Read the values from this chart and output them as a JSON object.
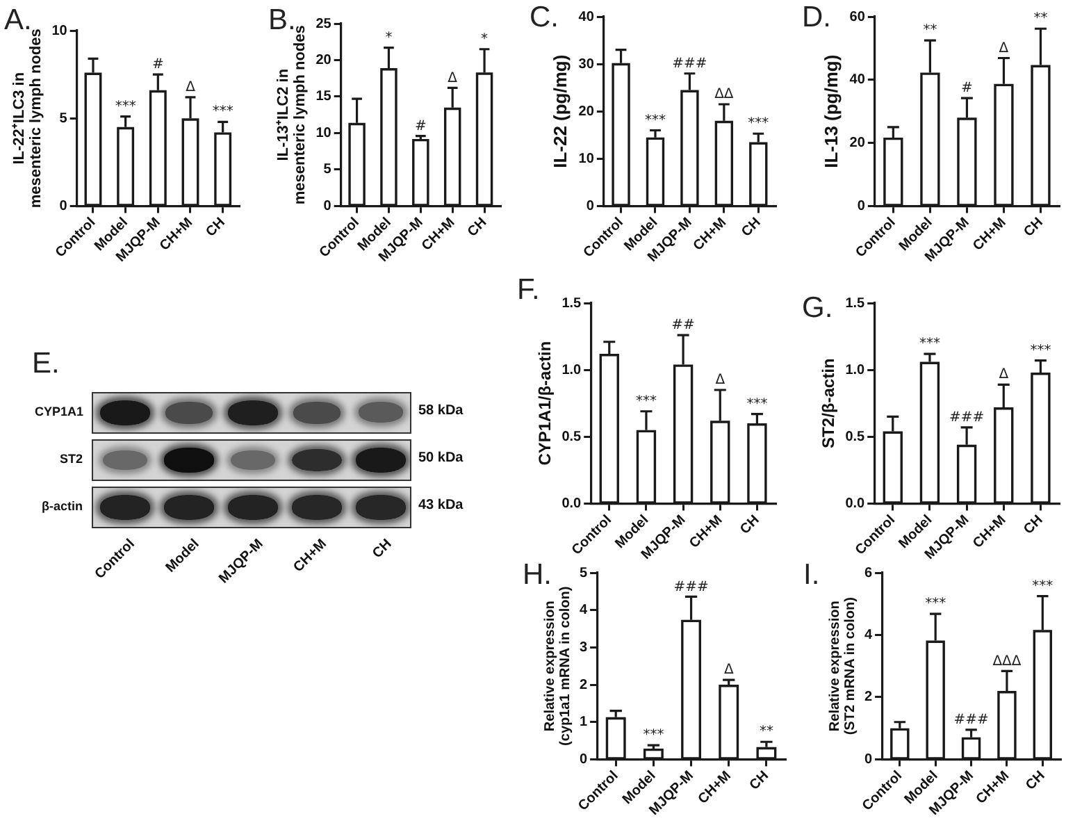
{
  "chart_data": [
    {
      "type": "bar",
      "title": "A.",
      "ylabel": "IL-22⁺ILC3 in\nmesenteric lymph nodes",
      "categories": [
        "Control",
        "Model",
        "MJQP-M",
        "CH+M",
        "CH"
      ],
      "values": [
        7.6,
        4.5,
        6.6,
        5.0,
        4.2
      ],
      "color": "#ffffff",
      "errors": [
        [
          7.6,
          8.4
        ],
        [
          4.5,
          5.1
        ],
        [
          6.6,
          7.5
        ],
        [
          5.0,
          6.2
        ],
        [
          4.2,
          4.8
        ]
      ],
      "ylim": [
        0,
        10
      ],
      "yticks": [
        0,
        5,
        10
      ],
      "annotations": [
        {
          "text": "***",
          "x": "Model",
          "y": 5.1
        },
        {
          "text": "#",
          "x": "MJQP-M",
          "y": 7.5
        },
        {
          "text": "Δ",
          "x": "CH+M",
          "y": 6.2
        },
        {
          "text": "***",
          "x": "CH",
          "y": 4.8
        }
      ]
    },
    {
      "type": "bar",
      "title": "B.",
      "ylabel": "IL-13⁺ILC2 in\nmesenteric lymph nodes",
      "categories": [
        "Control",
        "Model",
        "MJQP-M",
        "CH+M",
        "CH"
      ],
      "values": [
        11.4,
        18.9,
        9.2,
        13.5,
        18.3
      ],
      "color": "#ffffff",
      "errors": [
        [
          11.4,
          14.7
        ],
        [
          18.9,
          21.7
        ],
        [
          9.2,
          9.6
        ],
        [
          13.5,
          16.2
        ],
        [
          18.3,
          21.5
        ]
      ],
      "ylim": [
        0,
        25
      ],
      "yticks": [
        0,
        5,
        10,
        15,
        20,
        25
      ],
      "annotations": [
        {
          "text": "*",
          "x": "Model",
          "y": 21.7
        },
        {
          "text": "#",
          "x": "MJQP-M",
          "y": 9.6
        },
        {
          "text": "Δ",
          "x": "CH+M",
          "y": 16.2
        },
        {
          "text": "*",
          "x": "CH",
          "y": 21.5
        }
      ]
    },
    {
      "type": "bar",
      "title": "C.",
      "ylabel": "IL-22 (pg/mg)",
      "categories": [
        "Control",
        "Model",
        "MJQP-M",
        "CH+M",
        "CH"
      ],
      "values": [
        30.2,
        14.5,
        24.5,
        18.0,
        13.5
      ],
      "color": "#ffffff",
      "errors": [
        [
          30.2,
          33.0
        ],
        [
          14.5,
          16.0
        ],
        [
          24.5,
          28.0
        ],
        [
          18.0,
          21.5
        ],
        [
          13.5,
          15.3
        ]
      ],
      "ylim": [
        0,
        40
      ],
      "yticks": [
        0,
        10,
        20,
        30,
        40
      ],
      "annotations": [
        {
          "text": "***",
          "x": "Model",
          "y": 16.0
        },
        {
          "text": "###",
          "x": "MJQP-M",
          "y": 28.0
        },
        {
          "text": "ΔΔ",
          "x": "CH+M",
          "y": 21.5
        },
        {
          "text": "***",
          "x": "CH",
          "y": 15.3
        }
      ]
    },
    {
      "type": "bar",
      "title": "D.",
      "ylabel": "IL-13 (pg/mg)",
      "categories": [
        "Control",
        "Model",
        "MJQP-M",
        "CH+M",
        "CH"
      ],
      "values": [
        21.7,
        42.3,
        28.0,
        38.7,
        44.7
      ],
      "color": "#ffffff",
      "errors": [
        [
          21.7,
          25.0
        ],
        [
          42.3,
          52.5
        ],
        [
          28.0,
          34.2
        ],
        [
          38.7,
          46.9
        ],
        [
          44.7,
          56.2
        ]
      ],
      "ylim": [
        0,
        60
      ],
      "yticks": [
        0,
        20,
        40,
        60
      ],
      "annotations": [
        {
          "text": "**",
          "x": "Model",
          "y": 52.5
        },
        {
          "text": "#",
          "x": "MJQP-M",
          "y": 34.2
        },
        {
          "text": "Δ",
          "x": "CH+M",
          "y": 46.9
        },
        {
          "text": "**",
          "x": "CH",
          "y": 56.2
        }
      ]
    },
    {
      "type": "other",
      "title": "E.",
      "categories": [
        "Control",
        "Model",
        "MJQP-M",
        "CH+M",
        "CH"
      ],
      "y_categories": [
        "CYP1A1",
        "ST2",
        "β-actin"
      ],
      "y2_categories": [
        "58 kDa",
        "50 kDa",
        "43 kDa"
      ]
    },
    {
      "type": "bar",
      "title": "F.",
      "ylabel": "CYP1A1/β-actin",
      "categories": [
        "Control",
        "Model",
        "MJQP-M",
        "CH+M",
        "CH"
      ],
      "values": [
        1.12,
        0.55,
        1.04,
        0.62,
        0.6
      ],
      "color": "#ffffff",
      "errors": [
        [
          1.12,
          1.21
        ],
        [
          0.55,
          0.69
        ],
        [
          1.04,
          1.26
        ],
        [
          0.62,
          0.85
        ],
        [
          0.6,
          0.67
        ]
      ],
      "ylim": [
        0,
        1.5
      ],
      "yticks": [
        {
          "value": 0,
          "label": "0.0"
        },
        {
          "value": 0.5,
          "label": "0.5"
        },
        {
          "value": 1,
          "label": "1.0"
        },
        {
          "value": 1.5,
          "label": "1.5"
        }
      ],
      "annotations": [
        {
          "text": "***",
          "x": "Model",
          "y": 0.69
        },
        {
          "text": "##",
          "x": "MJQP-M",
          "y": 1.26
        },
        {
          "text": "Δ",
          "x": "CH+M",
          "y": 0.85
        },
        {
          "text": "***",
          "x": "CH",
          "y": 0.67
        }
      ]
    },
    {
      "type": "bar",
      "title": "G.",
      "ylabel": "ST2/β-actin",
      "categories": [
        "Control",
        "Model",
        "MJQP-M",
        "CH+M",
        "CH"
      ],
      "values": [
        0.54,
        1.06,
        0.44,
        0.72,
        0.98
      ],
      "color": "#ffffff",
      "errors": [
        [
          0.54,
          0.65
        ],
        [
          1.06,
          1.12
        ],
        [
          0.44,
          0.57
        ],
        [
          0.72,
          0.89
        ],
        [
          0.98,
          1.07
        ]
      ],
      "ylim": [
        0,
        1.5
      ],
      "yticks": [
        {
          "value": 0,
          "label": "0.0"
        },
        {
          "value": 0.5,
          "label": "0.5"
        },
        {
          "value": 1,
          "label": "1.0"
        },
        {
          "value": 1.5,
          "label": "1.5"
        }
      ],
      "annotations": [
        {
          "text": "***",
          "x": "Model",
          "y": 1.12
        },
        {
          "text": "###",
          "x": "MJQP-M",
          "y": 0.57
        },
        {
          "text": "Δ",
          "x": "CH+M",
          "y": 0.89
        },
        {
          "text": "***",
          "x": "CH",
          "y": 1.07
        }
      ]
    },
    {
      "type": "bar",
      "title": "H.",
      "ylabel": "Relative expression\n(cyp1a1 mRNA in colon)",
      "categories": [
        "Control",
        "Model",
        "MJQP-M",
        "CH+M",
        "CH"
      ],
      "values": [
        1.13,
        0.29,
        3.74,
        2.0,
        0.33
      ],
      "color": "#ffffff",
      "errors": [
        [
          1.13,
          1.3
        ],
        [
          0.29,
          0.38
        ],
        [
          3.74,
          4.36
        ],
        [
          2.0,
          2.13
        ],
        [
          0.33,
          0.47
        ]
      ],
      "ylim": [
        0,
        5
      ],
      "yticks": [
        0,
        1,
        2,
        3,
        4,
        5
      ],
      "annotations": [
        {
          "text": "***",
          "x": "Model",
          "y": 0.38
        },
        {
          "text": "###",
          "x": "MJQP-M",
          "y": 4.36
        },
        {
          "text": "Δ",
          "x": "CH+M",
          "y": 2.13
        },
        {
          "text": "**",
          "x": "CH",
          "y": 0.47
        }
      ]
    },
    {
      "type": "bar",
      "title": "I.",
      "ylabel": "Relative expression\n(ST2 mRNA in colon)",
      "categories": [
        "Control",
        "Model",
        "MJQP-M",
        "CH+M",
        "CH"
      ],
      "values": [
        1.0,
        3.82,
        0.71,
        2.2,
        4.16
      ],
      "color": "#ffffff",
      "errors": [
        [
          1.0,
          1.2
        ],
        [
          3.82,
          4.68
        ],
        [
          0.71,
          0.95
        ],
        [
          2.2,
          2.84
        ],
        [
          4.16,
          5.25
        ]
      ],
      "ylim": [
        0,
        6
      ],
      "yticks": [
        0,
        2,
        4,
        6
      ],
      "annotations": [
        {
          "text": "***",
          "x": "Model",
          "y": 4.68
        },
        {
          "text": "###",
          "x": "MJQP-M",
          "y": 0.95
        },
        {
          "text": "ΔΔΔ",
          "x": "CH+M",
          "y": 2.84
        },
        {
          "text": "***",
          "x": "CH",
          "y": 5.25
        }
      ]
    }
  ]
}
